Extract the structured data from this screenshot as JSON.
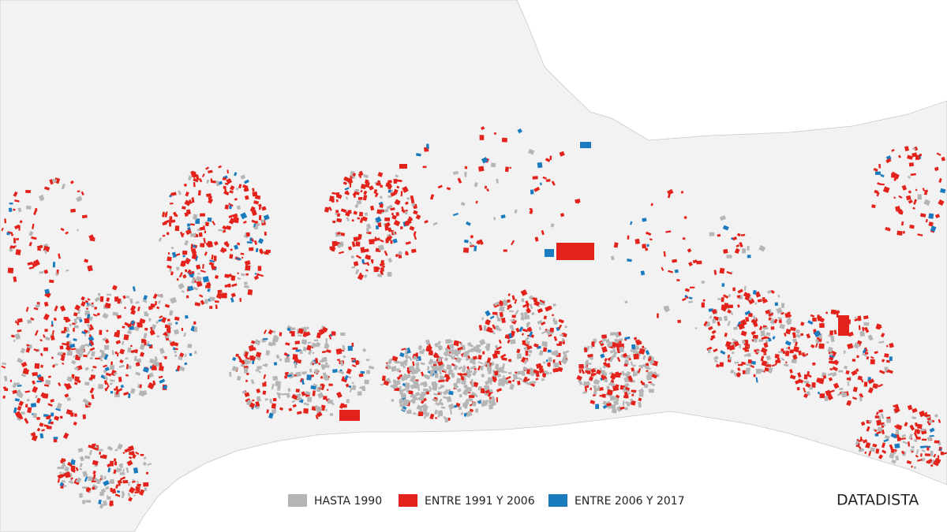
{
  "legend": {
    "items": [
      {
        "label": "HASTA 1990",
        "color": "#b5b5b5"
      },
      {
        "label": "ENTRE 1991 Y 2006",
        "color": "#e3231b"
      },
      {
        "label": "ENTRE 2006 Y 2017",
        "color": "#1a7bbf"
      }
    ]
  },
  "credit": "DATADISTA"
}
